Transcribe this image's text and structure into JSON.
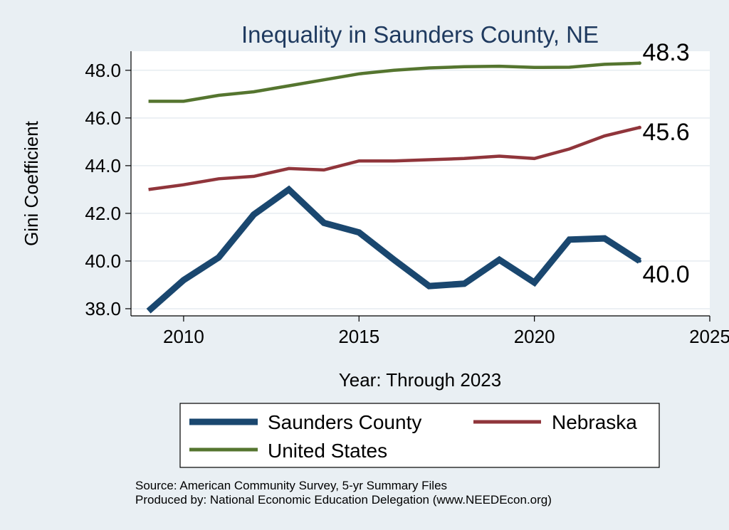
{
  "chart_data": {
    "type": "line",
    "title": "Inequality in Saunders County, NE",
    "xlabel": "Year: Through 2023",
    "ylabel": "Gini Coefficient",
    "xlim": [
      2008.5,
      2025
    ],
    "ylim": [
      37.7,
      48.8
    ],
    "x_ticks": [
      2010,
      2015,
      2020,
      2025
    ],
    "y_ticks": [
      38.0,
      40.0,
      42.0,
      44.0,
      46.0,
      48.0
    ],
    "y_tick_labels": [
      "38.0",
      "40.0",
      "42.0",
      "44.0",
      "46.0",
      "48.0"
    ],
    "grid": true,
    "x": [
      2009,
      2010,
      2011,
      2012,
      2013,
      2014,
      2015,
      2016,
      2017,
      2018,
      2019,
      2020,
      2021,
      2022,
      2023
    ],
    "series": [
      {
        "name": "United States",
        "color": "#55752f",
        "values": [
          46.7,
          46.7,
          46.95,
          47.1,
          47.35,
          47.6,
          47.85,
          48.0,
          48.1,
          48.15,
          48.17,
          48.12,
          48.13,
          48.25,
          48.3
        ],
        "end_label": "48.3"
      },
      {
        "name": "Nebraska",
        "color": "#90353b",
        "values": [
          43.0,
          43.2,
          43.45,
          43.55,
          43.88,
          43.82,
          44.2,
          44.2,
          44.25,
          44.3,
          44.4,
          44.3,
          44.7,
          45.25,
          45.6
        ],
        "end_label": "45.6"
      },
      {
        "name": "Saunders County",
        "color": "#1a476f",
        "values": [
          37.9,
          39.2,
          40.15,
          41.95,
          43.0,
          41.6,
          41.2,
          40.05,
          38.95,
          39.05,
          40.05,
          39.1,
          40.9,
          40.95,
          40.0
        ],
        "end_label": "40.0"
      }
    ],
    "legend": {
      "placement": "bottom",
      "entries": [
        "Saunders County",
        "Nebraska",
        "United States"
      ]
    },
    "notes": [
      "Source: American Community Survey, 5-yr Summary Files",
      "Produced by: National Economic Education Delegation (www.NEEDEcon.org)"
    ]
  }
}
